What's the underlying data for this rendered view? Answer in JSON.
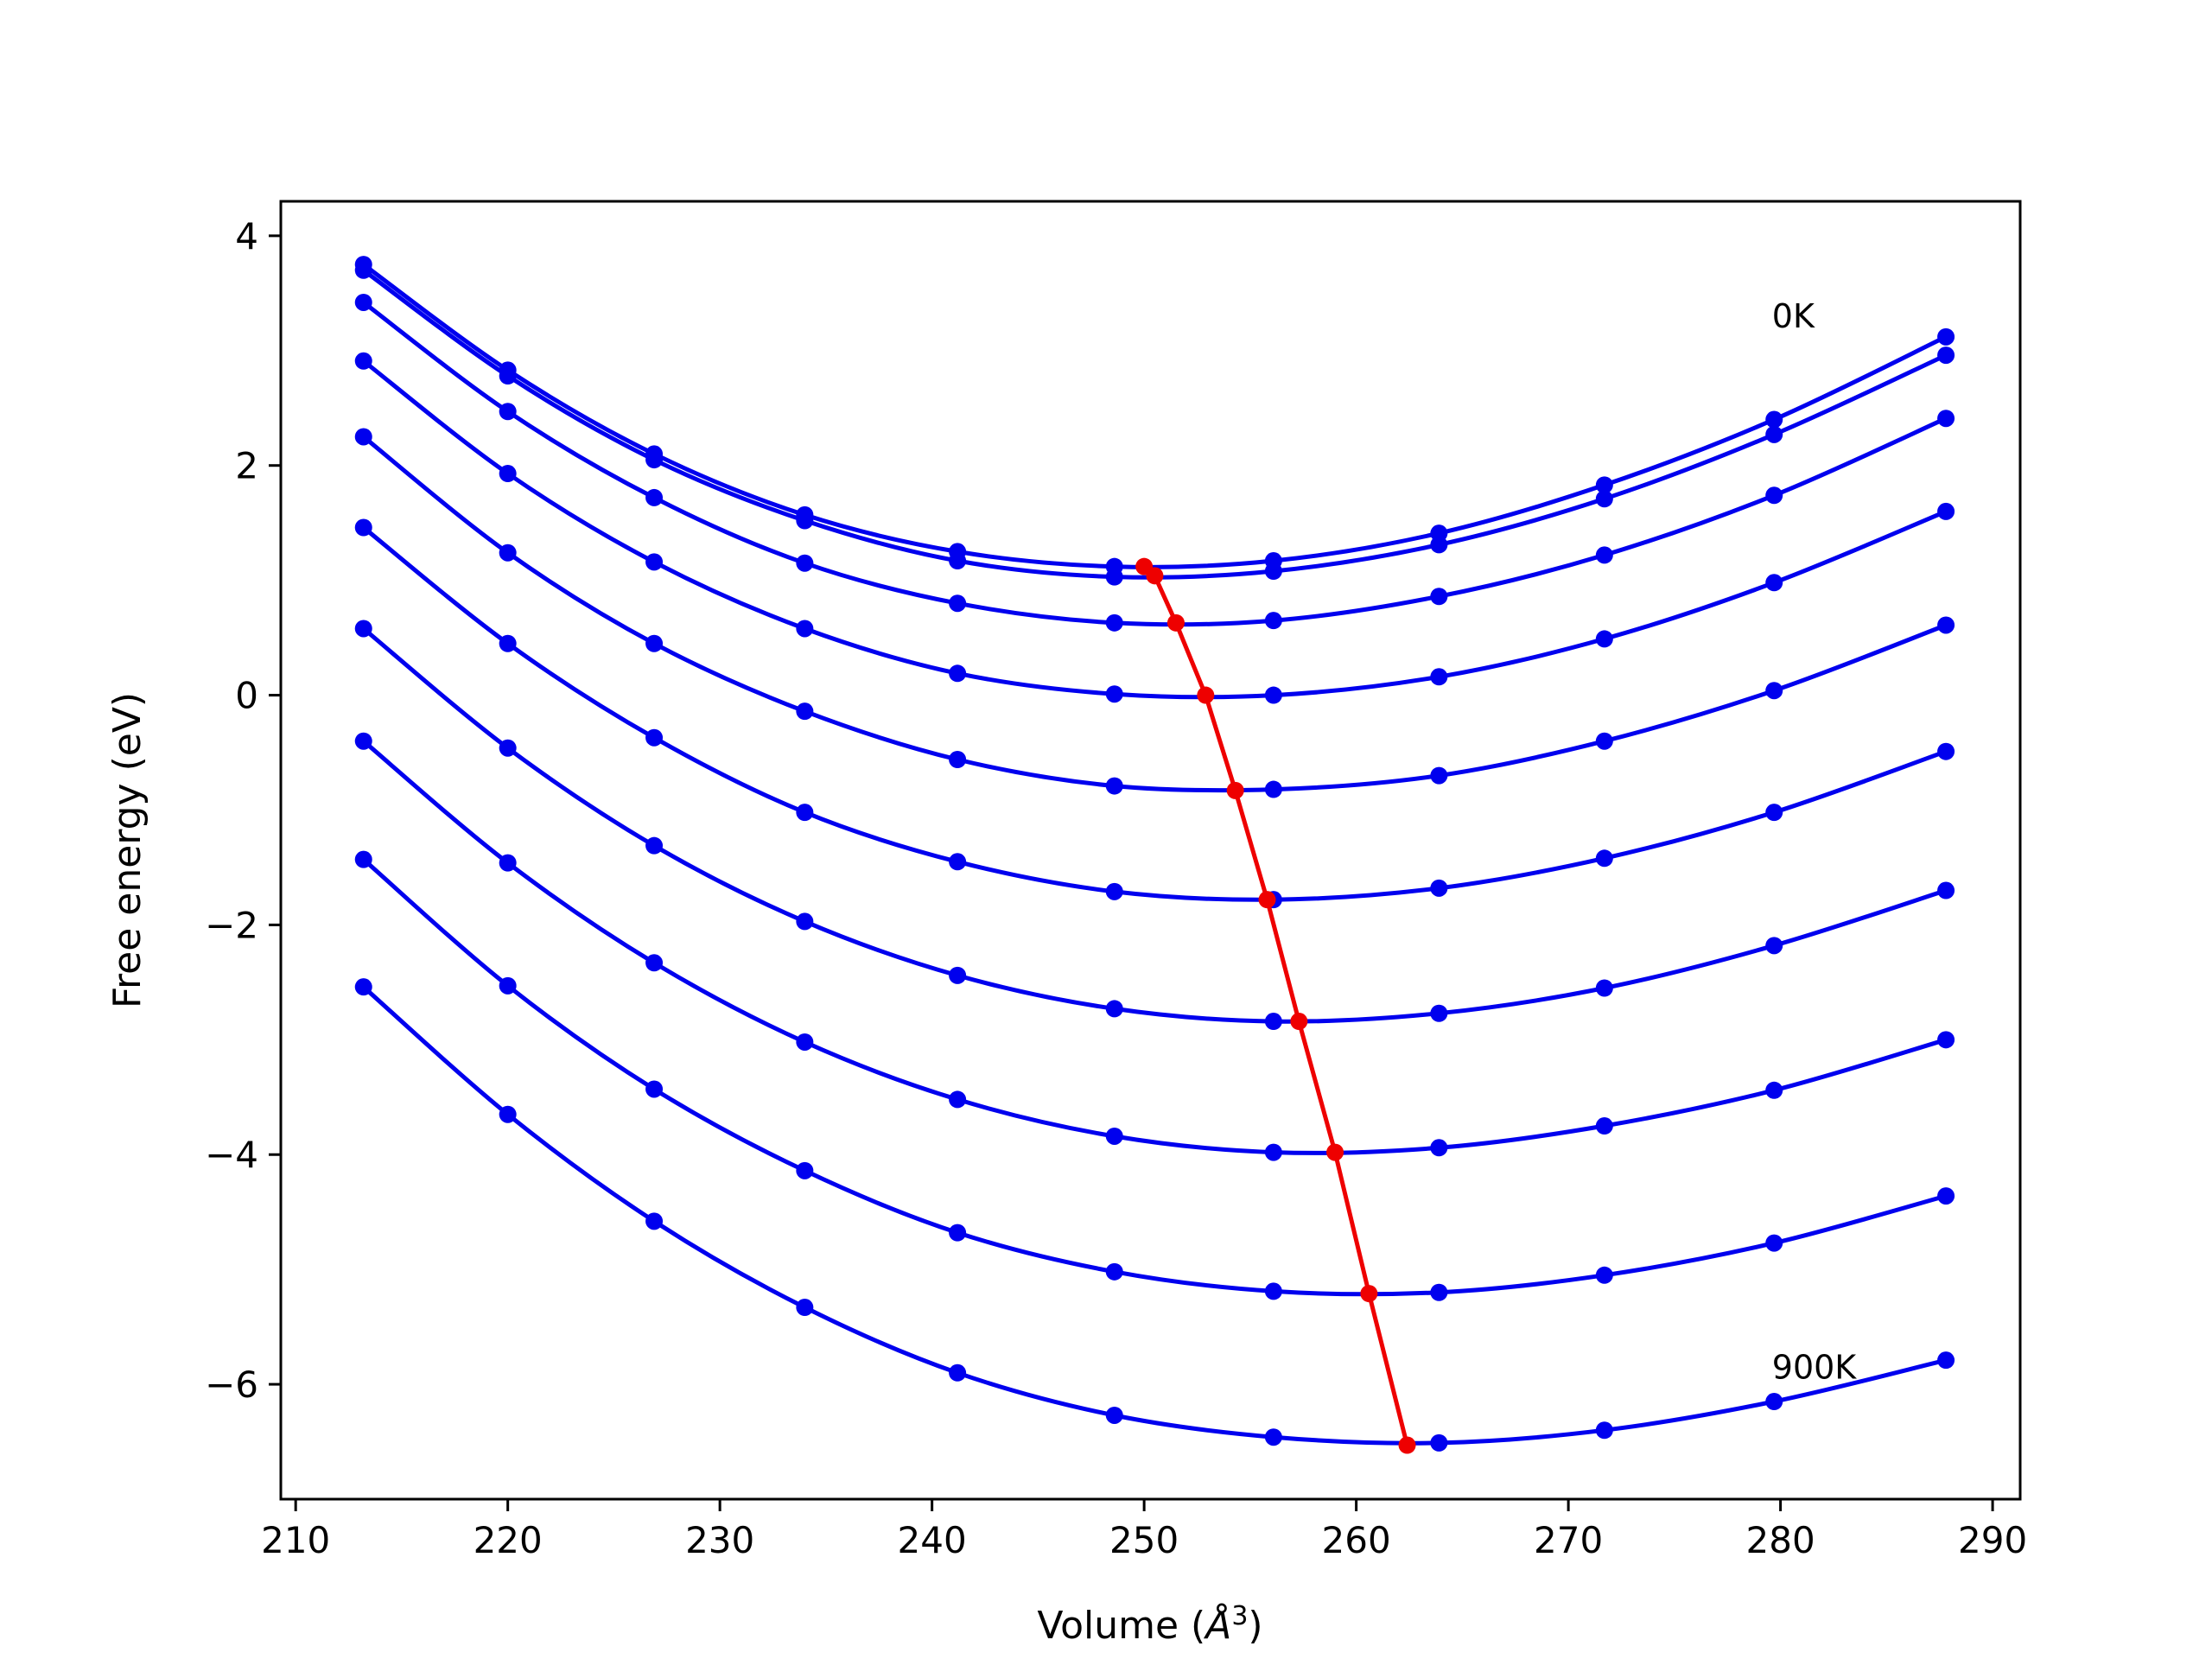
{
  "chart_data": {
    "type": "line",
    "title": "",
    "xlabel": "Volume (",
    "xlabel_unit": "Å",
    "xlabel_exp": "3",
    "xlabel_close": ")",
    "ylabel": "Free energy (eV)",
    "xlim": [
      209.3,
      291.3
    ],
    "ylim": [
      -7.0,
      4.3
    ],
    "xticks": [
      210,
      220,
      230,
      240,
      250,
      260,
      270,
      280,
      290
    ],
    "yticks": [
      4,
      2,
      0,
      -2,
      -4,
      -6
    ],
    "ytick_labels": [
      "4",
      "2",
      "0",
      "−2",
      "−4",
      "−6"
    ],
    "grid": false,
    "annotations": [
      {
        "text": "0K",
        "x": 279.6,
        "y": 3.2
      },
      {
        "text": "900K",
        "x": 279.6,
        "y": -5.95
      }
    ],
    "x": [
      213.2,
      220.0,
      226.9,
      234.0,
      241.2,
      248.6,
      256.1,
      263.9,
      271.7,
      279.7,
      287.8
    ],
    "series": [
      {
        "values": [
          3.75,
          2.83,
          2.1,
          1.57,
          1.25,
          1.12,
          1.17,
          1.41,
          1.83,
          2.4,
          3.12
        ]
      },
      {
        "values": [
          3.7,
          2.78,
          2.05,
          1.52,
          1.17,
          1.03,
          1.08,
          1.31,
          1.71,
          2.27,
          2.96
        ]
      },
      {
        "values": [
          3.42,
          2.47,
          1.72,
          1.15,
          0.8,
          0.63,
          0.65,
          0.86,
          1.22,
          1.74,
          2.41
        ]
      },
      {
        "values": [
          2.91,
          1.93,
          1.16,
          0.58,
          0.19,
          0.01,
          0.0,
          0.16,
          0.49,
          0.98,
          1.6
        ]
      },
      {
        "values": [
          2.25,
          1.24,
          0.45,
          -0.14,
          -0.56,
          -0.79,
          -0.82,
          -0.7,
          -0.4,
          0.04,
          0.61
        ]
      },
      {
        "values": [
          1.46,
          0.45,
          -0.37,
          -1.02,
          -1.45,
          -1.71,
          -1.78,
          -1.68,
          -1.42,
          -1.02,
          -0.49
        ]
      },
      {
        "values": [
          0.58,
          -0.46,
          -1.31,
          -1.97,
          -2.44,
          -2.73,
          -2.84,
          -2.77,
          -2.55,
          -2.18,
          -1.7
        ]
      },
      {
        "values": [
          -0.4,
          -1.46,
          -2.33,
          -3.02,
          -3.52,
          -3.84,
          -3.98,
          -3.94,
          -3.75,
          -3.44,
          -3.0
        ]
      },
      {
        "values": [
          -1.43,
          -2.53,
          -3.43,
          -4.14,
          -4.68,
          -5.02,
          -5.19,
          -5.2,
          -5.05,
          -4.77,
          -4.36
        ]
      },
      {
        "values": [
          -2.54,
          -3.65,
          -4.58,
          -5.33,
          -5.9,
          -6.27,
          -6.46,
          -6.51,
          -6.4,
          -6.15,
          -5.79
        ]
      }
    ],
    "minima": {
      "x": [
        250.0,
        250.5,
        251.5,
        252.9,
        254.3,
        255.8,
        257.3,
        259.0,
        260.6,
        262.4
      ],
      "y": [
        1.12,
        1.04,
        0.63,
        0.0,
        -0.83,
        -1.78,
        -2.84,
        -3.98,
        -5.21,
        -6.53
      ]
    },
    "colors": {
      "curves": "#0000ee",
      "minima": "#ee0000",
      "axes": "#000000"
    }
  }
}
